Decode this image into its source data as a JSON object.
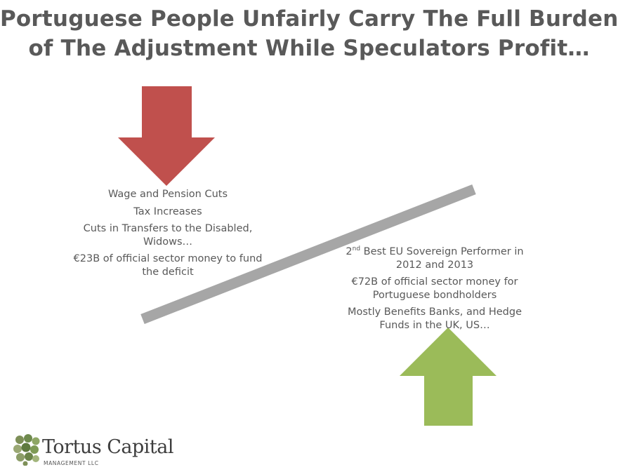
{
  "title": {
    "line1": "Portuguese People Unfairly Carry The Full Burden",
    "line2": "of The Adjustment While Speculators Profit…"
  },
  "left_items": [
    "Wage and Pension Cuts",
    "Tax Increases",
    "Cuts in Transfers to the Disabled, Widows…",
    "€23B of official sector money to fund the deficit"
  ],
  "right_items": {
    "item1_sup": "nd",
    "item1_pre": "2",
    "item1_rest": " Best EU Sovereign Performer in 2012 and 2013",
    "item2": "€72B of official sector money for Portuguese bondholders",
    "item3": "Mostly Benefits Banks, and Hedge Funds in the UK, US…"
  },
  "logo": {
    "name": "Tortus Capital",
    "subtitle": "MANAGEMENT LLC"
  },
  "colors": {
    "down_arrow": "#c0504d",
    "up_arrow": "#9bbb59",
    "seesaw": "#a6a6a6",
    "text": "#595959"
  }
}
